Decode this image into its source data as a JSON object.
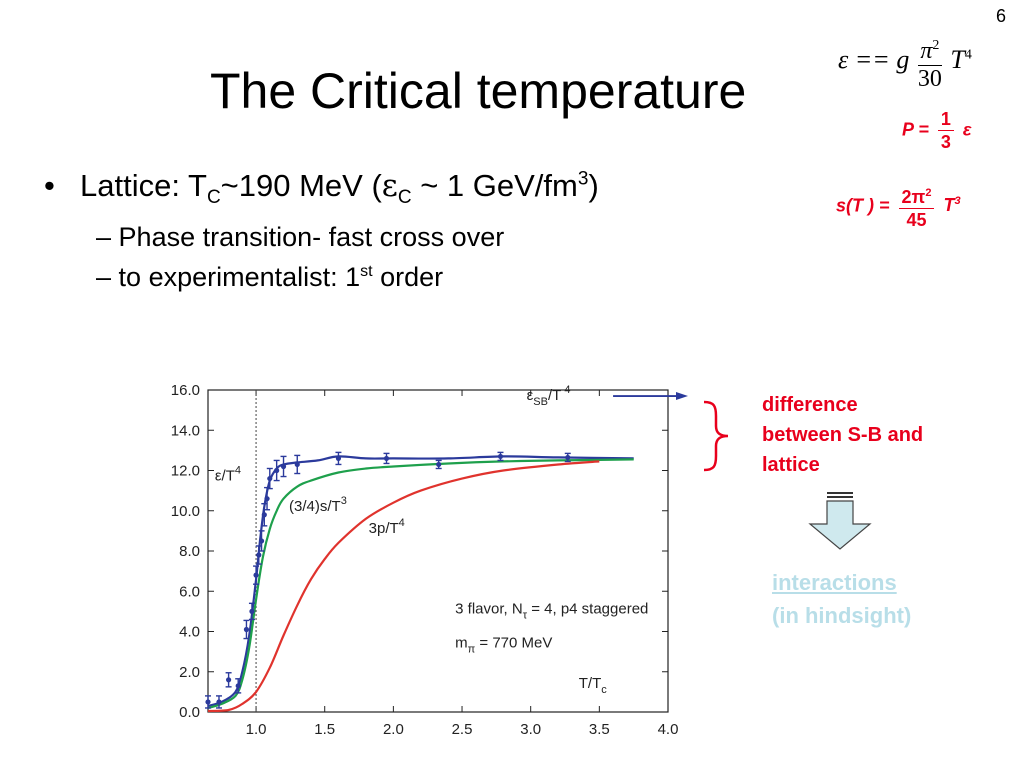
{
  "slide": {
    "page_number": "6",
    "title": "The Critical temperature"
  },
  "formulas": {
    "energy": {
      "lhs": "ε",
      "eq": "==",
      "g": "g",
      "num": "π",
      "num_exp": "2",
      "den": "30",
      "var": "T",
      "var_exp": "4"
    },
    "pressure": {
      "lhs": "P",
      "eq": "=",
      "num": "1",
      "den": "3",
      "rhs": "ε"
    },
    "entropy": {
      "lhs": "s(T )",
      "eq": "=",
      "num": "2π",
      "num_exp": "2",
      "den": "45",
      "var": "T",
      "var_exp": "3"
    }
  },
  "bullets": {
    "main": {
      "dot": "•",
      "p1": "Lattice: T",
      "sub1": "C",
      "p2": "~190 MeV  (",
      "eps": "ε",
      "sub2": "C",
      "p3": " ~ 1 GeV/fm",
      "sup": "3",
      "p4": ")"
    },
    "sub1": {
      "dash": "–",
      "text": "Phase transition- fast cross over"
    },
    "sub2": {
      "dash": "–",
      "p1": "to experimentalist: 1",
      "sup": "st",
      "p2": " order"
    }
  },
  "annotation": {
    "line1": "difference",
    "line2": "between S-B and",
    "line3": "lattice",
    "brace_color": "#e8001c",
    "arrow_fill": "#cfe9ee"
  },
  "interactions": {
    "line1": "interactions",
    "line2": "(in hindsight)"
  },
  "chart_data": {
    "type": "line",
    "xlabel": "T/T",
    "xlabel_sub": "c",
    "xlim": [
      0.65,
      4.0
    ],
    "ylim": [
      0.0,
      16.0
    ],
    "xticks": [
      "1.0",
      "1.5",
      "2.0",
      "2.5",
      "3.0",
      "3.5",
      "4.0"
    ],
    "yticks": [
      "0.0",
      "2.0",
      "4.0",
      "6.0",
      "8.0",
      "10.0",
      "12.0",
      "14.0",
      "16.0"
    ],
    "tc_line": 1.0,
    "sb_limit": {
      "y": 15.7,
      "label": "ε",
      "label_sub": "SB",
      "label_rest": "/T",
      "label_sup": "4",
      "color": "#2b3a9c"
    },
    "series": [
      {
        "name": "ε/T⁴",
        "color": "#2b3a9c",
        "x": [
          0.65,
          0.75,
          0.85,
          0.9,
          0.95,
          1.0,
          1.03,
          1.06,
          1.1,
          1.15,
          1.2,
          1.3,
          1.45,
          1.6,
          1.8,
          2.0,
          2.4,
          2.8,
          3.2,
          3.75
        ],
        "y": [
          0.3,
          0.5,
          1.0,
          2.0,
          3.8,
          6.6,
          8.6,
          10.2,
          11.5,
          12.1,
          12.3,
          12.4,
          12.5,
          12.7,
          12.6,
          12.6,
          12.6,
          12.7,
          12.65,
          12.6
        ]
      },
      {
        "name": "(3/4)s/T³",
        "color": "#1ea04c",
        "x": [
          0.65,
          0.75,
          0.85,
          0.9,
          0.95,
          1.0,
          1.05,
          1.1,
          1.15,
          1.2,
          1.3,
          1.4,
          1.6,
          1.8,
          2.0,
          2.4,
          2.8,
          3.2,
          3.75
        ],
        "y": [
          0.2,
          0.4,
          0.8,
          1.6,
          3.2,
          5.6,
          7.7,
          9.1,
          10.0,
          10.6,
          11.2,
          11.5,
          11.9,
          12.1,
          12.2,
          12.35,
          12.45,
          12.5,
          12.55
        ]
      },
      {
        "name": "3p/T⁴",
        "color": "#e0332d",
        "x": [
          0.65,
          0.8,
          0.9,
          1.0,
          1.1,
          1.2,
          1.3,
          1.4,
          1.5,
          1.6,
          1.8,
          2.0,
          2.2,
          2.5,
          2.8,
          3.2,
          3.5
        ],
        "y": [
          0.05,
          0.1,
          0.4,
          1.0,
          2.2,
          3.8,
          5.3,
          6.6,
          7.6,
          8.4,
          9.6,
          10.4,
          11.0,
          11.6,
          12.0,
          12.3,
          12.45
        ]
      }
    ],
    "error_points": {
      "color": "#2b3a9c",
      "x": [
        0.65,
        0.73,
        0.8,
        0.87,
        0.93,
        0.97,
        1.0,
        1.02,
        1.04,
        1.06,
        1.08,
        1.1,
        1.15,
        1.2,
        1.3,
        1.6,
        1.95,
        2.33,
        2.78,
        3.27
      ],
      "y": [
        0.5,
        0.5,
        1.6,
        1.3,
        4.1,
        5.0,
        6.8,
        7.8,
        8.5,
        9.8,
        10.6,
        11.6,
        12.0,
        12.2,
        12.3,
        12.6,
        12.6,
        12.3,
        12.7,
        12.65
      ],
      "err": [
        0.3,
        0.3,
        0.35,
        0.35,
        0.45,
        0.4,
        0.45,
        0.45,
        0.5,
        0.55,
        0.55,
        0.5,
        0.5,
        0.5,
        0.45,
        0.3,
        0.25,
        0.2,
        0.2,
        0.2
      ]
    },
    "annotations": [
      {
        "text": "ε/T",
        "sup": "4",
        "x": 0.7,
        "y": 11.5
      },
      {
        "text": "(3/4)s/T",
        "sup": "3",
        "x": 1.24,
        "y": 10.0
      },
      {
        "text": "3p/T",
        "sup": "4",
        "x": 1.82,
        "y": 8.9
      },
      {
        "text": "3 flavor, N",
        "sub": "τ",
        "rest": " = 4, p4 staggered",
        "x": 2.45,
        "y": 4.9
      },
      {
        "text": "m",
        "sub": "π",
        "rest": " = 770 MeV",
        "x": 2.45,
        "y": 3.2
      }
    ]
  }
}
